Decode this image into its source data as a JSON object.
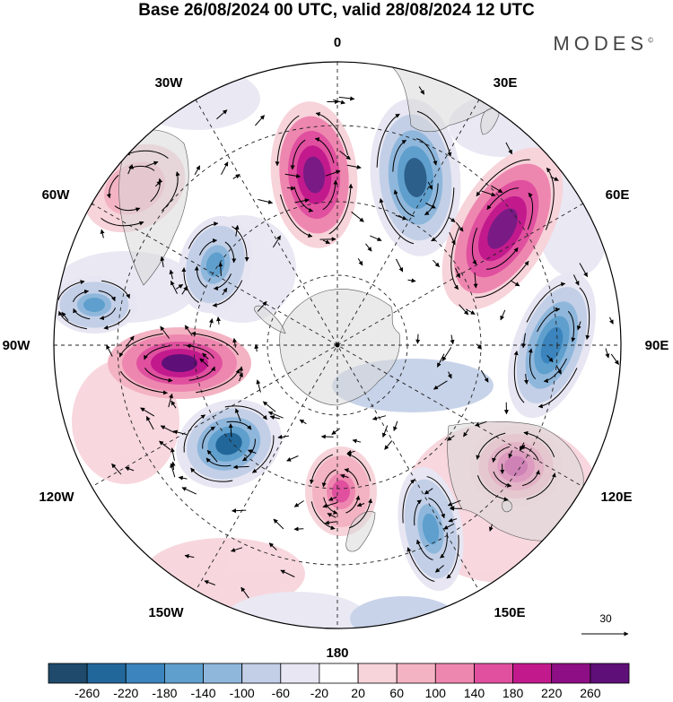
{
  "title": "Base 26/08/2024 00 UTC, valid 28/08/2024 12 UTC",
  "brand": {
    "text": "MODES",
    "mark": "©"
  },
  "longitude_labels": {
    "lon_0": "0",
    "lon_30e": "30E",
    "lon_60e": "60E",
    "lon_90e": "90E",
    "lon_120e": "120E",
    "lon_150e": "150E",
    "lon_180": "180",
    "lon_150w": "150W",
    "lon_120w": "120W",
    "lon_90w": "90W",
    "lon_60w": "60W",
    "lon_30w": "30W"
  },
  "vector_scale": {
    "label": "30"
  },
  "colorbar": {
    "tick_labels": [
      "-260",
      "-220",
      "-180",
      "-140",
      "-100",
      "-60",
      "-20",
      "20",
      "60",
      "100",
      "140",
      "180",
      "220",
      "260"
    ],
    "colors": [
      "#1f4a6b",
      "#22679a",
      "#3b84bd",
      "#5f9fcd",
      "#8fb7dc",
      "#c2cfe7",
      "#e7e6f2",
      "#ffffff",
      "#f7d3da",
      "#f3b3c3",
      "#ee87af",
      "#e0509f",
      "#c21a8d",
      "#8e0f85",
      "#5e0f78"
    ],
    "extend": "both"
  },
  "anomalies": [
    {
      "name": "low-0",
      "value": -200,
      "color": "#2c5f8a"
    },
    {
      "name": "high-0",
      "value": 230,
      "color": "#7a1a85"
    },
    {
      "name": "high-60e",
      "value": 230,
      "color": "#7a1a85"
    },
    {
      "name": "low-90e",
      "value": -180,
      "color": "#3b84bd"
    },
    {
      "name": "high-120e",
      "value": 180,
      "color": "#c21a8d"
    },
    {
      "name": "low-150e",
      "value": -140,
      "color": "#5f9fcd"
    },
    {
      "name": "high-170w",
      "value": 140,
      "color": "#e0509f"
    },
    {
      "name": "low-130w",
      "value": -200,
      "color": "#22679a"
    },
    {
      "name": "high-90w",
      "value": 260,
      "color": "#5e0f78"
    },
    {
      "name": "low-75w",
      "value": -140,
      "color": "#5f9fcd"
    },
    {
      "name": "low-45w",
      "value": -140,
      "color": "#5f9fcd"
    },
    {
      "name": "high-50w",
      "value": 100,
      "color": "#f3b3c3"
    }
  ]
}
